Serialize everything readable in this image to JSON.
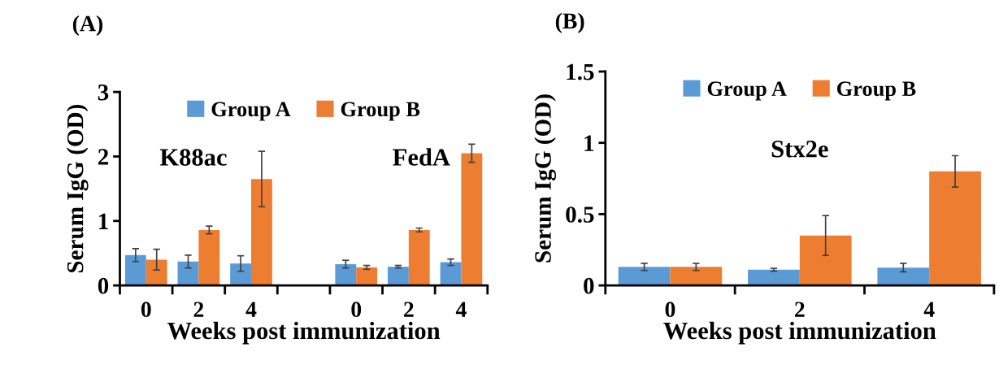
{
  "chart_data": [
    {
      "type": "bar",
      "title": "(A)",
      "xlabel": "Weeks post immunization",
      "ylabel": "Serum IgG (OD)",
      "categories": [
        "0",
        "2",
        "4",
        null,
        "0",
        "2",
        "4"
      ],
      "series": [
        {
          "name": "Group A",
          "color": "#5b9bd5",
          "values": [
            0.47,
            0.37,
            0.34,
            null,
            0.33,
            0.29,
            0.36
          ],
          "errors": [
            0.1,
            0.1,
            0.12,
            null,
            0.06,
            0.02,
            0.05
          ]
        },
        {
          "name": "Group B",
          "color": "#ed7d31",
          "values": [
            0.4,
            0.86,
            1.65,
            null,
            0.28,
            0.86,
            2.05
          ],
          "errors": [
            0.16,
            0.06,
            0.43,
            null,
            0.03,
            0.03,
            0.14
          ]
        }
      ],
      "annotations": [
        "K88ac",
        "FedA"
      ],
      "ylim": [
        0,
        3
      ],
      "yticks": [
        0,
        1,
        2,
        3
      ],
      "legend": "top",
      "grid": false
    },
    {
      "type": "bar",
      "title": "(B)",
      "xlabel": "Weeks post immunization",
      "ylabel": "Serum IgG (OD)",
      "categories": [
        "0",
        "2",
        "4"
      ],
      "series": [
        {
          "name": "Group A",
          "color": "#5b9bd5",
          "values": [
            0.13,
            0.11,
            0.125
          ],
          "errors": [
            0.025,
            0.01,
            0.03
          ]
        },
        {
          "name": "Group B",
          "color": "#ed7d31",
          "values": [
            0.13,
            0.35,
            0.8
          ],
          "errors": [
            0.025,
            0.14,
            0.11
          ]
        }
      ],
      "annotations": [
        "Stx2e"
      ],
      "ylim": [
        0,
        1.5
      ],
      "yticks": [
        0,
        0.5,
        1,
        1.5
      ],
      "legend": "top",
      "grid": false
    }
  ]
}
